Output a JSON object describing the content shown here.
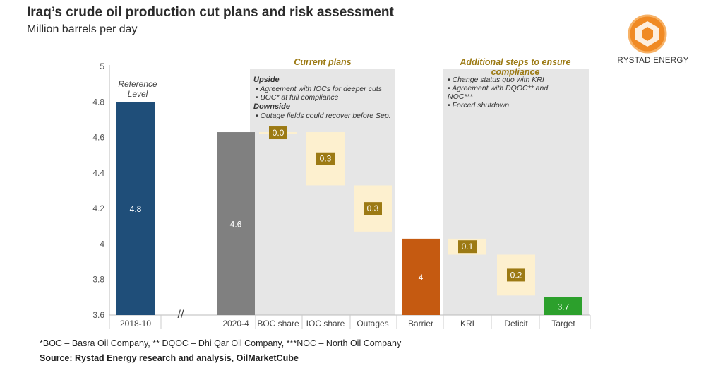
{
  "header": {
    "title": "Iraq’s crude oil production cut plans and risk assessment",
    "subtitle": "Million barrels per day"
  },
  "logo": {
    "text": "RYSTAD ENERGY"
  },
  "colors": {
    "reference": "#1f4e79",
    "gray_bar": "#808080",
    "barrier": "#c55a11",
    "target": "#2ca02c",
    "cut_box": "#fdf0cf",
    "label_box": "#9c7a14",
    "panel": "#e6e6e6",
    "section_title": "#9c7a14"
  },
  "chart_data": {
    "type": "bar",
    "subtype": "waterfall",
    "ylim": [
      3.6,
      5.0
    ],
    "yticks": [
      "5",
      "4.8",
      "4.6",
      "4.4",
      "4.2",
      "4",
      "3.8",
      "3.6"
    ],
    "categories": [
      "2018-10",
      "2020-4",
      "BOC share",
      "IOC share",
      "Outages",
      "Barrier",
      "KRI",
      "Deficit",
      "Target"
    ],
    "bars": [
      {
        "category": "2018-10",
        "kind": "total",
        "color": "reference",
        "bottom": 3.6,
        "top": 4.8,
        "label": "4.8"
      },
      {
        "category": "2020-4",
        "kind": "total",
        "color": "gray_bar",
        "bottom": 3.6,
        "top": 4.63,
        "label": "4.6"
      },
      {
        "category": "BOC share",
        "kind": "cut",
        "bottom": 4.62,
        "top": 4.63,
        "label": "0.0"
      },
      {
        "category": "IOC share",
        "kind": "cut",
        "bottom": 4.33,
        "top": 4.63,
        "label": "0.3"
      },
      {
        "category": "Outages",
        "kind": "cut",
        "bottom": 4.07,
        "top": 4.33,
        "label": "0.3"
      },
      {
        "category": "Barrier",
        "kind": "total",
        "color": "barrier",
        "bottom": 3.6,
        "top": 4.03,
        "label": "4"
      },
      {
        "category": "KRI",
        "kind": "cut",
        "bottom": 3.94,
        "top": 4.03,
        "label": "0.1"
      },
      {
        "category": "Deficit",
        "kind": "cut",
        "bottom": 3.71,
        "top": 3.94,
        "label": "0.2"
      },
      {
        "category": "Target",
        "kind": "total",
        "color": "target",
        "bottom": 3.6,
        "top": 3.7,
        "label": "3.7"
      }
    ],
    "annotations": {
      "reference": [
        "Reference",
        "Level"
      ],
      "axis_break": "//"
    },
    "sections": {
      "current_plans": {
        "title": "Current plans",
        "upside_heading": "Upside",
        "upside_items": [
          "Agreement with IOCs for deeper cuts",
          "BOC* at full compliance"
        ],
        "downside_heading": "Downside",
        "downside_items": [
          "Outage fields could recover before Sep."
        ]
      },
      "additional_steps": {
        "title_lines": [
          "Additional steps to ensure",
          "compliance"
        ],
        "items": [
          [
            "Change status quo with KRI"
          ],
          [
            "Agreement with DQOC** and",
            "NOC***"
          ],
          [
            "Forced shutdown"
          ]
        ]
      }
    }
  },
  "footer": {
    "footnote": "*BOC – Basra Oil Company, ** DQOC – Dhi Qar Oil Company, ***NOC – North Oil Company",
    "source": "Source: Rystad Energy research and analysis, OilMarketCube"
  }
}
